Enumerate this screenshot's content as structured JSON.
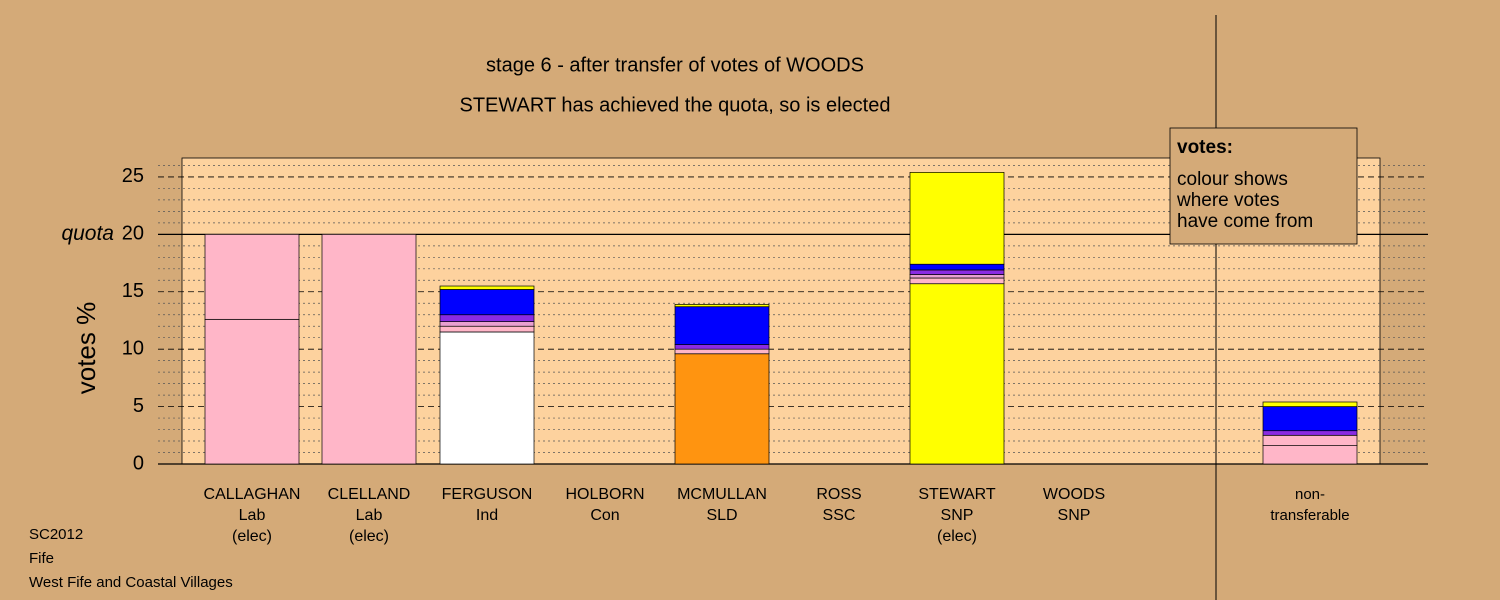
{
  "chart_data": {
    "type": "stacked-bar",
    "title": "stage 6 - after transfer of votes of WOODS",
    "subtitle": "STEWART has achieved the quota, so is elected",
    "y_label": "votes %",
    "ylim": [
      0,
      26.65
    ],
    "yticks": [
      0,
      5,
      10,
      15,
      20,
      25
    ],
    "minor_yticks": [
      1,
      2,
      3,
      4,
      6,
      7,
      8,
      9,
      11,
      12,
      13,
      14,
      16,
      17,
      18,
      19,
      21,
      22,
      23,
      24,
      26
    ],
    "quota": 20,
    "quota_label": "quota",
    "legend": {
      "title": "votes:",
      "lines": [
        "colour shows",
        "where votes",
        "have come from"
      ]
    },
    "bars": [
      {
        "label": [
          "CALLAGHAN",
          "Lab",
          "(elec)"
        ],
        "segments": [
          {
            "value": 12.6,
            "color": "#ffb6c8"
          },
          {
            "value": 7.4,
            "color": "#ffb6c8"
          }
        ]
      },
      {
        "label": [
          "CLELLAND",
          "Lab",
          "(elec)"
        ],
        "segments": [
          {
            "value": 20,
            "color": "#ffb6c8"
          }
        ]
      },
      {
        "label": [
          "FERGUSON",
          "Ind"
        ],
        "segments": [
          {
            "value": 11.5,
            "color": "#ffffff"
          },
          {
            "value": 0.5,
            "color": "#ffb6c8"
          },
          {
            "value": 0.4,
            "color": "#e9a0d0"
          },
          {
            "value": 0.6,
            "color": "#8a2be2"
          },
          {
            "value": 2.2,
            "color": "#0000ff"
          },
          {
            "value": 0.3,
            "color": "#ffff00"
          }
        ]
      },
      {
        "label": [
          "HOLBORN",
          "Con"
        ],
        "segments": []
      },
      {
        "label": [
          "MCMULLAN",
          "SLD"
        ],
        "segments": [
          {
            "value": 9.6,
            "color": "#ff9410"
          },
          {
            "value": 0.4,
            "color": "#ffb6c8"
          },
          {
            "value": 0.4,
            "color": "#8a2be2"
          },
          {
            "value": 3.3,
            "color": "#0000ff"
          },
          {
            "value": 0.2,
            "color": "#ffff00"
          }
        ]
      },
      {
        "label": [
          "ROSS",
          "SSC"
        ],
        "segments": []
      },
      {
        "label": [
          "STEWART",
          "SNP",
          "(elec)"
        ],
        "segments": [
          {
            "value": 15.7,
            "color": "#ffff00"
          },
          {
            "value": 0.5,
            "color": "#ffb6c8"
          },
          {
            "value": 0.3,
            "color": "#e9a0d0"
          },
          {
            "value": 0.4,
            "color": "#8a2be2"
          },
          {
            "value": 0.5,
            "color": "#0000ff"
          },
          {
            "value": 8.0,
            "color": "#ffff00"
          }
        ]
      },
      {
        "label": [
          "WOODS",
          "SNP"
        ],
        "segments": []
      },
      {
        "label": [
          "non-",
          "transferable"
        ],
        "segments": [
          {
            "value": 1.6,
            "color": "#ffb6c8"
          },
          {
            "value": 0.9,
            "color": "#ffb6c8"
          },
          {
            "value": 0.4,
            "color": "#8a2be2"
          },
          {
            "value": 2.1,
            "color": "#0000ff"
          },
          {
            "value": 0.4,
            "color": "#ffff00"
          }
        ]
      }
    ],
    "footer": [
      "SC2012",
      "Fife",
      "West Fife and Coastal Villages"
    ]
  }
}
